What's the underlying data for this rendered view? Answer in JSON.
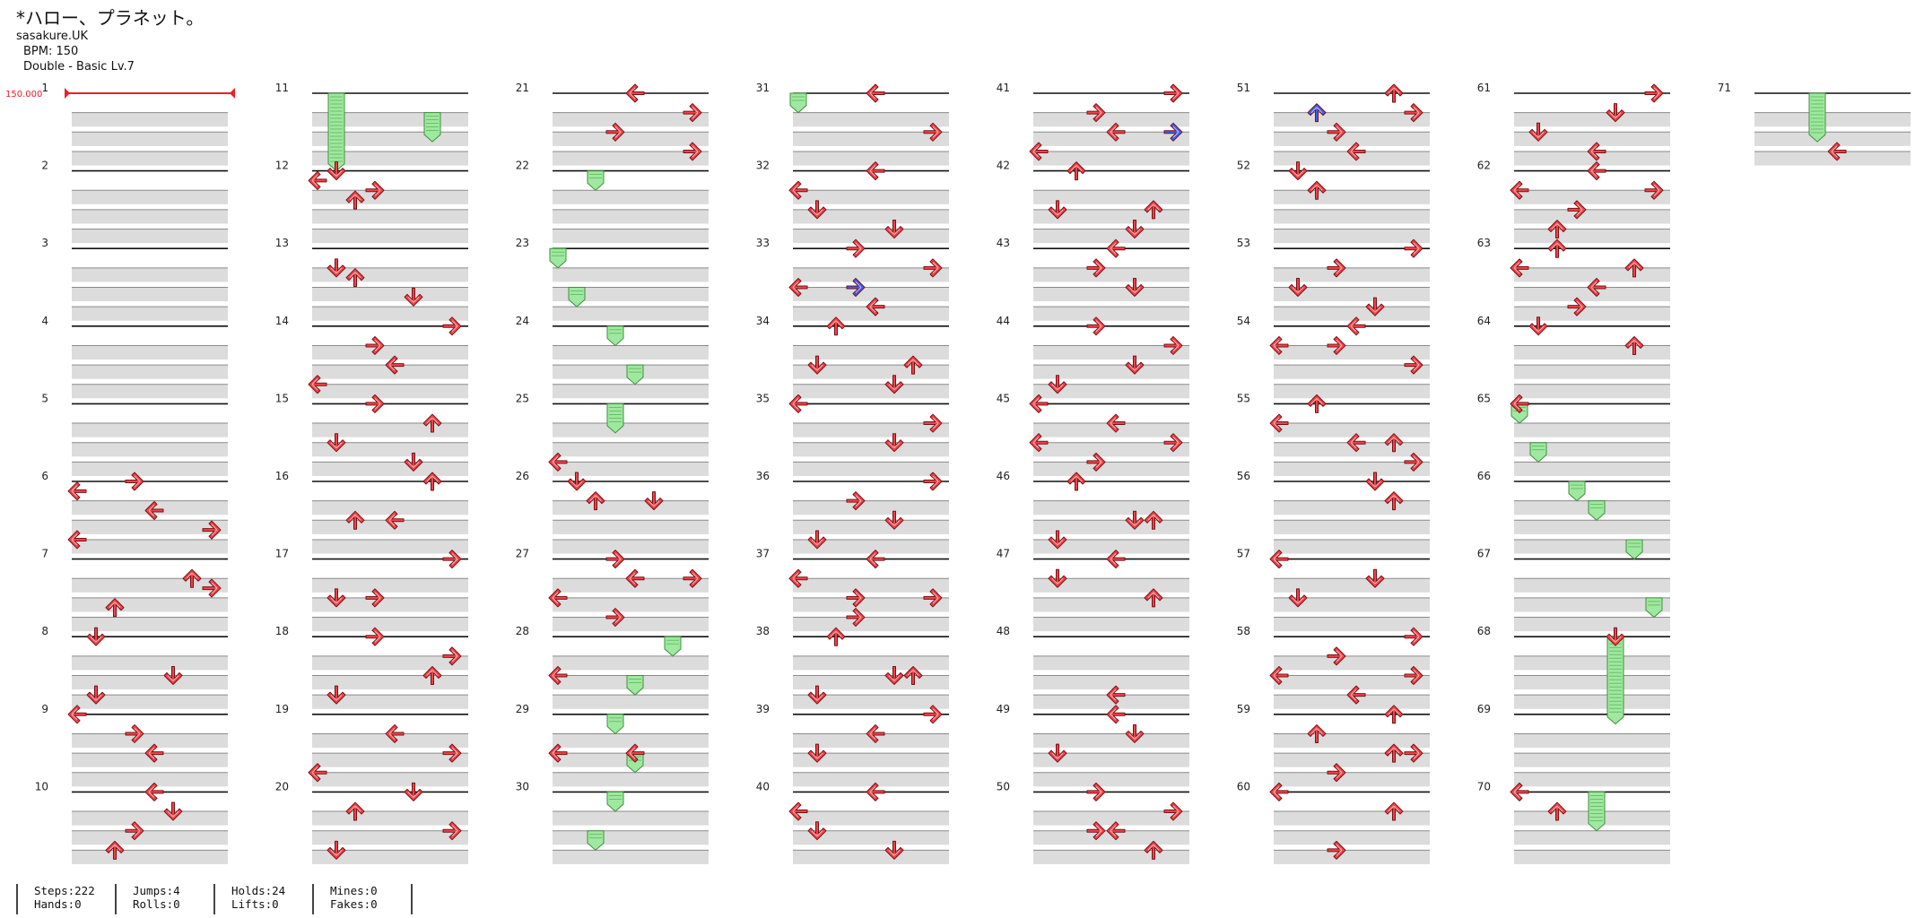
{
  "song": {
    "title": "*ハロー、プラネット。",
    "artist": "sasakure.UK",
    "bpm_line": "BPM: 150",
    "chart_type": "Double - Basic  Lv.7",
    "bpm_marker": "150.000"
  },
  "stats": {
    "steps": "Steps:222",
    "hands": "Hands:0",
    "jumps": "Jumps:4",
    "rolls": "Rolls:0",
    "holds": "Holds:24",
    "lifts": "Lifts:0",
    "mines": "Mines:0",
    "fakes": "Fakes:0"
  },
  "colors": {
    "note_red": "#f04448",
    "note_blue": "#3a5ff0",
    "hold_green": "#9fe89f",
    "bpm_red": "#e8202a",
    "lane_shade": "#dcdcdc"
  },
  "chart": {
    "measures_per_column": 10,
    "total_measures": 71,
    "lanes": 8,
    "beats_per_measure": 4,
    "note_types": [
      "red-arrow",
      "blue-arrow",
      "hold"
    ],
    "hold_count": 24,
    "measure_labels": [
      "1",
      "2",
      "3",
      "4",
      "5",
      "6",
      "7",
      "8",
      "9",
      "10",
      "11",
      "12",
      "13",
      "14",
      "15",
      "16",
      "17",
      "18",
      "19",
      "20",
      "21",
      "22",
      "23",
      "24",
      "25",
      "26",
      "27",
      "28",
      "29",
      "30",
      "31",
      "32",
      "33",
      "34",
      "35",
      "36",
      "37",
      "38",
      "39",
      "40",
      "41",
      "42",
      "43",
      "44",
      "45",
      "46",
      "47",
      "48",
      "49",
      "50",
      "51",
      "52",
      "53",
      "54",
      "55",
      "56",
      "57",
      "58",
      "59",
      "60",
      "61",
      "62",
      "63",
      "64",
      "65",
      "66",
      "67",
      "68",
      "69",
      "70",
      "71"
    ]
  }
}
